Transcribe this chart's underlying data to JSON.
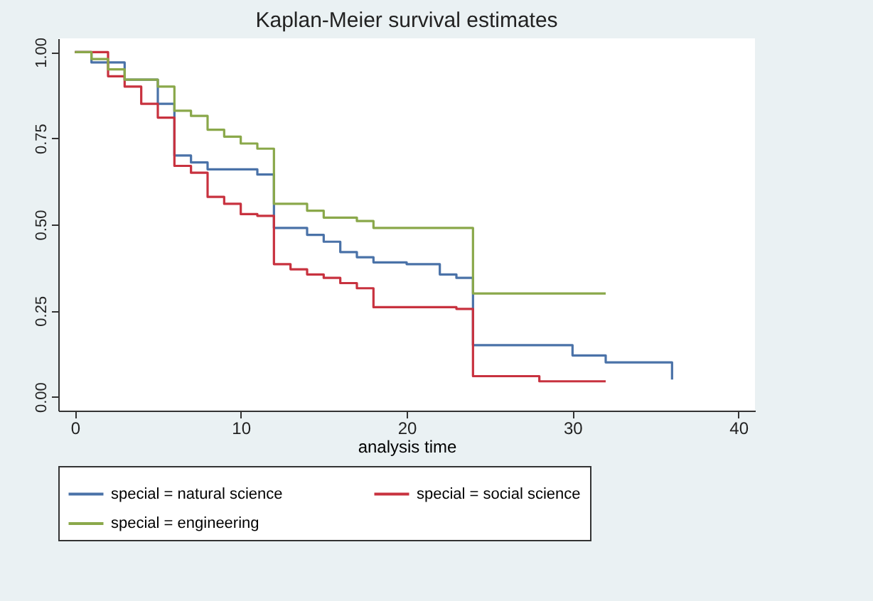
{
  "chart_data": {
    "type": "step",
    "title": "Kaplan-Meier survival estimates",
    "xlabel": "analysis time",
    "xlim": [
      -1,
      41
    ],
    "xticks": [
      0,
      10,
      20,
      30,
      40
    ],
    "ylim": [
      -0.04,
      1.04
    ],
    "yticks": [
      {
        "value": 0,
        "label": "0.00"
      },
      {
        "value": 0.25,
        "label": "0.25"
      },
      {
        "value": 0.5,
        "label": "0.50"
      },
      {
        "value": 0.75,
        "label": "0.75"
      },
      {
        "value": 1,
        "label": "1.00"
      }
    ],
    "grid": false,
    "legend": "bottom",
    "line_style": "solid",
    "marker": "none",
    "series": [
      {
        "name": "special = natural science",
        "color": "#4a72a8",
        "x": [
          0,
          1,
          3,
          5,
          6,
          7,
          8,
          11,
          12,
          14,
          15,
          16,
          17,
          18,
          20,
          22,
          23,
          24,
          30,
          32,
          36
        ],
        "values": [
          1,
          0.97,
          0.92,
          0.85,
          0.7,
          0.68,
          0.66,
          0.645,
          0.49,
          0.47,
          0.45,
          0.42,
          0.405,
          0.39,
          0.385,
          0.355,
          0.345,
          0.15,
          0.12,
          0.1,
          0.05
        ]
      },
      {
        "name": "special = social science",
        "color": "#c8323f",
        "x": [
          0,
          2,
          3,
          4,
          5,
          6,
          7,
          8,
          9,
          10,
          11,
          12,
          13,
          14,
          15,
          16,
          17,
          18,
          23,
          24,
          28,
          32
        ],
        "values": [
          1,
          0.93,
          0.9,
          0.85,
          0.81,
          0.67,
          0.65,
          0.58,
          0.56,
          0.53,
          0.525,
          0.385,
          0.37,
          0.355,
          0.345,
          0.33,
          0.315,
          0.26,
          0.255,
          0.06,
          0.045,
          0.045
        ]
      },
      {
        "name": "special = engineering",
        "color": "#8aa84a",
        "x": [
          0,
          1,
          2,
          3,
          5,
          6,
          7,
          8,
          9,
          10,
          11,
          12,
          14,
          15,
          17,
          18,
          24,
          32
        ],
        "values": [
          1,
          0.98,
          0.95,
          0.92,
          0.9,
          0.83,
          0.815,
          0.775,
          0.755,
          0.735,
          0.72,
          0.56,
          0.54,
          0.52,
          0.51,
          0.49,
          0.3,
          0.3
        ]
      }
    ]
  }
}
